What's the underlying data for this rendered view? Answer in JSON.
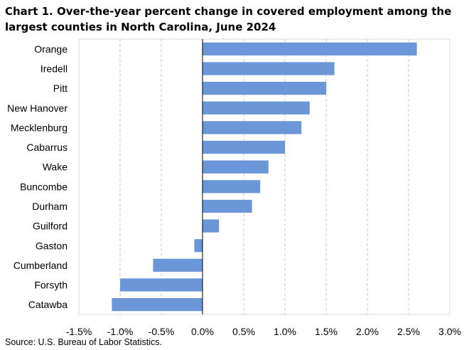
{
  "chart_data": {
    "type": "bar",
    "orientation": "horizontal",
    "title": "Chart 1. Over-the-year percent change in covered employment among the largest counties in North Carolina, June 2024",
    "categories": [
      "Orange",
      "Iredell",
      "Pitt",
      "New Hanover",
      "Mecklenburg",
      "Cabarrus",
      "Wake",
      "Buncombe",
      "Durham",
      "Guilford",
      "Gaston",
      "Cumberland",
      "Forsyth",
      "Catawba"
    ],
    "values": [
      2.6,
      1.6,
      1.5,
      1.3,
      1.2,
      1.0,
      0.8,
      0.7,
      0.6,
      0.2,
      -0.1,
      -0.6,
      -1.0,
      -1.1
    ],
    "unit": "%",
    "xlim": [
      -1.5,
      3.0
    ],
    "xticks": [
      -1.5,
      -1.0,
      -0.5,
      0.0,
      0.5,
      1.0,
      1.5,
      2.0,
      2.5,
      3.0
    ],
    "xtick_labels": [
      "-1.5%",
      "-1.0%",
      "-0.5%",
      "0.0%",
      "0.5%",
      "1.0%",
      "1.5%",
      "2.0%",
      "2.5%",
      "3.0%"
    ],
    "grid": "vertical dashed",
    "bar_color": "#6b96d8",
    "legend": "none"
  },
  "source": "Source: U.S. Bureau of Labor Statistics."
}
